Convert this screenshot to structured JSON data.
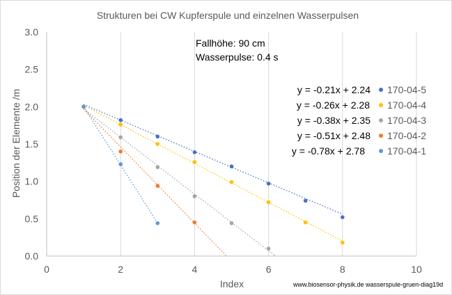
{
  "chart_data": {
    "type": "scatter",
    "title": "Strukturen bei CW Kupferspule und einzelnen Wasserpulsen",
    "xlabel": "Index",
    "ylabel": "Position der Elemente /m",
    "xlim": [
      0,
      10
    ],
    "ylim": [
      0,
      3.0
    ],
    "x_ticks": [
      "0",
      "2",
      "4",
      "6",
      "8",
      "10"
    ],
    "y_ticks": [
      "0.0",
      "0.5",
      "1.0",
      "1.5",
      "2.0",
      "2.5",
      "3.0"
    ],
    "x_tick_values": [
      0,
      2,
      4,
      6,
      8,
      10
    ],
    "y_tick_values": [
      0,
      0.5,
      1.0,
      1.5,
      2.0,
      2.5,
      3.0
    ],
    "grid": "vertical",
    "legend_position": "right",
    "annotation_lines": [
      "Fallhöhe: 90 cm",
      "Wasserpulse: 0.4 s"
    ],
    "source_credit": "www.biosensor-physik.de  wasserspule-gruen-diag19d",
    "series": [
      {
        "name": "170-04-5",
        "color": "#4472c4",
        "x": [
          1,
          2,
          3,
          4,
          5,
          6,
          7,
          8
        ],
        "y": [
          2.0,
          1.82,
          1.6,
          1.39,
          1.2,
          0.97,
          0.74,
          0.52
        ],
        "trendline": {
          "equation": "y = -0.21x + 2.24",
          "slope": -0.21,
          "intercept": 2.24,
          "x_range": [
            1,
            8
          ]
        }
      },
      {
        "name": "170-04-4",
        "color": "#ffc000",
        "x": [
          1,
          2,
          3,
          4,
          5,
          6,
          7,
          8
        ],
        "y": [
          2.0,
          1.76,
          1.5,
          1.26,
          0.99,
          0.72,
          0.45,
          0.18
        ],
        "trendline": {
          "equation": "y = -0.26x + 2.28",
          "slope": -0.26,
          "intercept": 2.28,
          "x_range": [
            1,
            8
          ]
        }
      },
      {
        "name": "170-04-3",
        "color": "#a5a5a5",
        "x": [
          1,
          2,
          3,
          4,
          5,
          6
        ],
        "y": [
          2.0,
          1.59,
          1.19,
          0.8,
          0.44,
          0.1
        ],
        "trendline": {
          "equation": "y = -0.38x + 2.35",
          "slope": -0.38,
          "intercept": 2.35,
          "x_range": [
            1,
            6.5
          ]
        }
      },
      {
        "name": "170-04-2",
        "color": "#ed7d31",
        "x": [
          1,
          2,
          3,
          4
        ],
        "y": [
          2.0,
          1.4,
          0.94,
          0.45
        ],
        "trendline": {
          "equation": "y = -0.51x + 2.48",
          "slope": -0.51,
          "intercept": 2.48,
          "x_range": [
            1,
            5.0
          ]
        }
      },
      {
        "name": "170-04-1",
        "color": "#5b9bd5",
        "x": [
          1,
          2,
          3
        ],
        "y": [
          2.0,
          1.23,
          0.44
        ],
        "trendline": {
          "equation": "y = -0.78x + 2.78",
          "slope": -0.78,
          "intercept": 2.78,
          "x_range": [
            1,
            3
          ]
        }
      }
    ]
  }
}
